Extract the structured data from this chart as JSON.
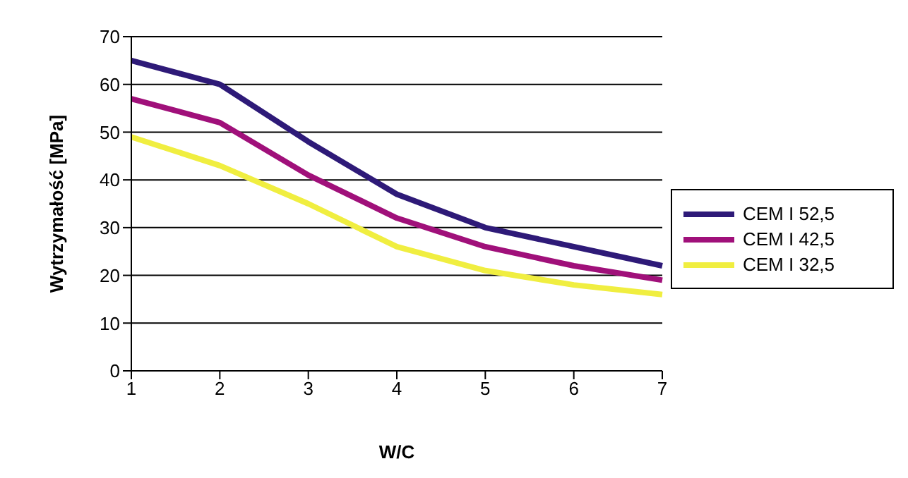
{
  "chart_data": {
    "type": "line",
    "xlabel": "W/C",
    "ylabel": "Wytrzymałość [MPa]",
    "categories": [
      "1",
      "2",
      "3",
      "4",
      "5",
      "6",
      "7"
    ],
    "series": [
      {
        "name": "CEM I 52,5",
        "color": "#2e1a78",
        "values": [
          65,
          60,
          48,
          37,
          30,
          26,
          22
        ]
      },
      {
        "name": "CEM I 42,5",
        "color": "#a0107a",
        "values": [
          57,
          52,
          41,
          32,
          26,
          22,
          19
        ]
      },
      {
        "name": "CEM I 32,5",
        "color": "#f0ee40",
        "values": [
          49,
          43,
          35,
          26,
          21,
          18,
          16
        ]
      }
    ],
    "ylim": [
      0,
      70
    ],
    "yticks": [
      0,
      10,
      20,
      30,
      40,
      50,
      60,
      70
    ],
    "grid": "y",
    "legend": "right",
    "marker": "none",
    "line_style": "solid"
  }
}
